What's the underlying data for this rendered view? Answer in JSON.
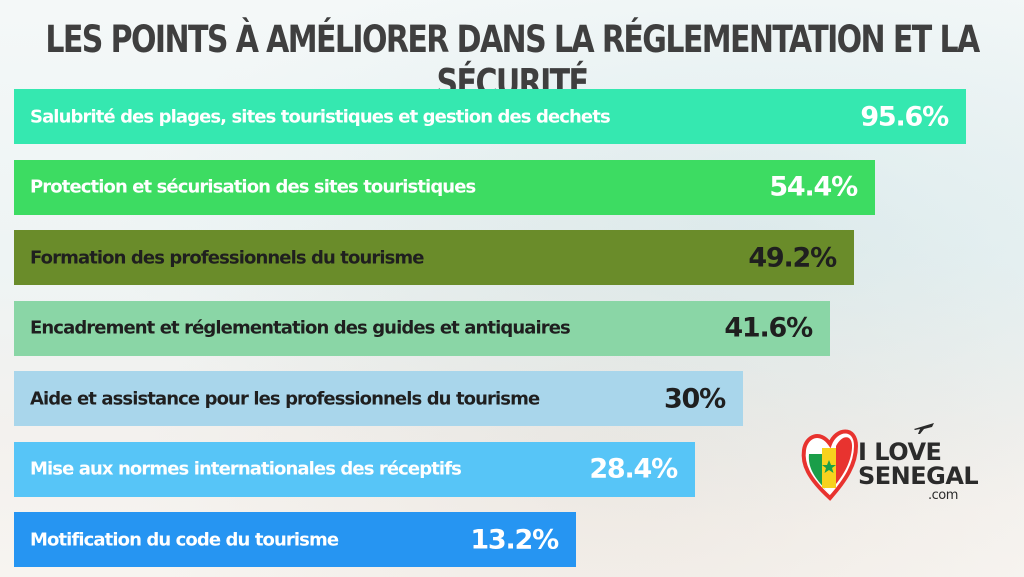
{
  "chart_data": {
    "type": "bar",
    "orientation": "horizontal",
    "title": "LES POINTS À AMÉLIORER DANS LA RÉGLEMENTATION ET LA SÉCURITÉ",
    "categories": [
      "Salubrité des plages, sites touristiques et gestion des dechets",
      "Protection et sécurisation des sites touristiques",
      "Formation des professionnels du tourisme",
      "Encadrement et réglementation des guides et antiquaires",
      "Aide et assistance pour les professionnels du tourisme",
      "Mise aux normes internationales des réceptifs",
      "Motification du code du tourisme"
    ],
    "values": [
      95.6,
      54.4,
      49.2,
      41.6,
      30,
      28.4,
      13.2
    ],
    "value_labels": [
      "95.6%",
      "54.4%",
      "49.2%",
      "41.6%",
      "30%",
      "28.4%",
      "13.2%"
    ],
    "bar_colors": [
      "#35e8b0",
      "#3ddc62",
      "#6a8c2a",
      "#8ad6a6",
      "#a9d6eb",
      "#57c5f7",
      "#2695f2"
    ],
    "text_colors": [
      "#ffffff",
      "#ffffff",
      "#1f1f1f",
      "#1f1f1f",
      "#1f1f1f",
      "#ffffff",
      "#ffffff"
    ],
    "xlabel": "",
    "ylabel": "",
    "grid": false,
    "legend": "none"
  },
  "logo": {
    "line1": "I LOVE",
    "line2": "SENEGAL",
    "line3": ".com",
    "icon": "heart-flag-icon",
    "plane_icon": "airplane-icon",
    "flag_colors": [
      "#1a9e49",
      "#f7d21e",
      "#e8332f"
    ]
  }
}
